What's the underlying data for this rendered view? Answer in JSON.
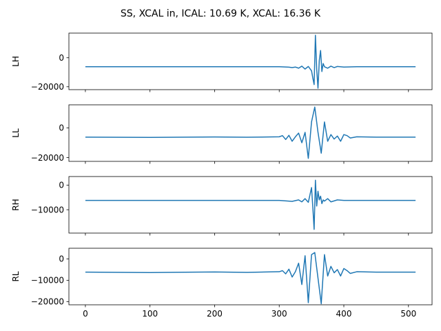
{
  "figure": {
    "title": "SS, XCAL in, ICAL: 10.69 K, XCAL: 16.36 K"
  },
  "chart_data": {
    "type": "line",
    "title": "SS, XCAL in, ICAL: 10.69 K, XCAL: 16.36 K",
    "x_ticks": [
      0,
      100,
      200,
      300,
      400,
      500
    ],
    "xlim": [
      -25.5,
      536.5
    ],
    "line_color": "#1f77b4",
    "panels": [
      {
        "ylabel": "LH",
        "ylim": [
          -22000,
          17000
        ],
        "y_ticks": [
          0,
          -20000
        ],
        "y_tick_labels": [
          "0",
          "−20000"
        ],
        "baseline": -6200,
        "x": [
          0,
          300,
          315,
          320,
          325,
          330,
          335,
          340,
          345,
          350,
          352,
          354,
          356,
          358,
          360,
          362,
          364,
          366,
          368,
          370,
          375,
          380,
          385,
          390,
          400,
          420,
          450,
          511
        ],
        "values": [
          -6200,
          -6200,
          -6500,
          -6800,
          -6400,
          -7200,
          -5800,
          -7800,
          -6000,
          -9000,
          -14000,
          -18500,
          15500,
          -8000,
          -21000,
          -2000,
          5000,
          -9500,
          -4000,
          -6200,
          -7200,
          -5800,
          -6800,
          -6000,
          -6400,
          -6200,
          -6200,
          -6200
        ]
      },
      {
        "ylabel": "LL",
        "ylim": [
          -22500,
          15500
        ],
        "y_ticks": [
          0,
          -20000
        ],
        "y_tick_labels": [
          "0",
          "−20000"
        ],
        "baseline": -6200,
        "x": [
          0,
          100,
          200,
          250,
          300,
          305,
          310,
          315,
          320,
          325,
          330,
          335,
          340,
          345,
          350,
          355,
          360,
          365,
          370,
          375,
          380,
          385,
          390,
          395,
          400,
          405,
          410,
          420,
          450,
          511
        ],
        "values": [
          -6200,
          -6400,
          -6100,
          -6300,
          -6000,
          -5200,
          -7800,
          -5000,
          -9000,
          -6000,
          -3500,
          -10000,
          -3000,
          -20500,
          4000,
          14000,
          -3000,
          -17000,
          4000,
          -9000,
          -4500,
          -7500,
          -5500,
          -9000,
          -4500,
          -5200,
          -6800,
          -6000,
          -6200,
          -6200
        ]
      },
      {
        "ylabel": "RH",
        "ylim": [
          -19500,
          3500
        ],
        "y_ticks": [
          0,
          -10000
        ],
        "y_tick_labels": [
          "0",
          "−10000"
        ],
        "baseline": -6200,
        "x": [
          0,
          300,
          320,
          330,
          335,
          340,
          345,
          350,
          352,
          354,
          356,
          358,
          360,
          362,
          364,
          366,
          368,
          370,
          375,
          380,
          390,
          400,
          450,
          511
        ],
        "values": [
          -6200,
          -6200,
          -6600,
          -6000,
          -6800,
          -5500,
          -7000,
          -1000,
          -9000,
          -18000,
          2000,
          -8500,
          -2500,
          -6000,
          -4500,
          -7500,
          -6000,
          -6500,
          -5500,
          -6800,
          -6000,
          -6200,
          -6200,
          -6200
        ]
      },
      {
        "ylabel": "RL",
        "ylim": [
          -21500,
          5000
        ],
        "y_ticks": [
          0,
          -10000,
          -20000
        ],
        "y_tick_labels": [
          "0",
          "−10000",
          "−20000"
        ],
        "baseline": -6200,
        "x": [
          0,
          100,
          200,
          250,
          300,
          305,
          310,
          315,
          320,
          325,
          330,
          335,
          340,
          345,
          350,
          355,
          360,
          365,
          370,
          375,
          380,
          385,
          390,
          395,
          400,
          405,
          410,
          420,
          450,
          511
        ],
        "values": [
          -6200,
          -6400,
          -6100,
          -6300,
          -6000,
          -5500,
          -7000,
          -4800,
          -8500,
          -6000,
          -2000,
          -12000,
          1500,
          -20500,
          2000,
          3000,
          -9000,
          -21000,
          2000,
          -8000,
          -3500,
          -6500,
          -5000,
          -8000,
          -4500,
          -5500,
          -6800,
          -6000,
          -6200,
          -6200
        ]
      }
    ]
  }
}
